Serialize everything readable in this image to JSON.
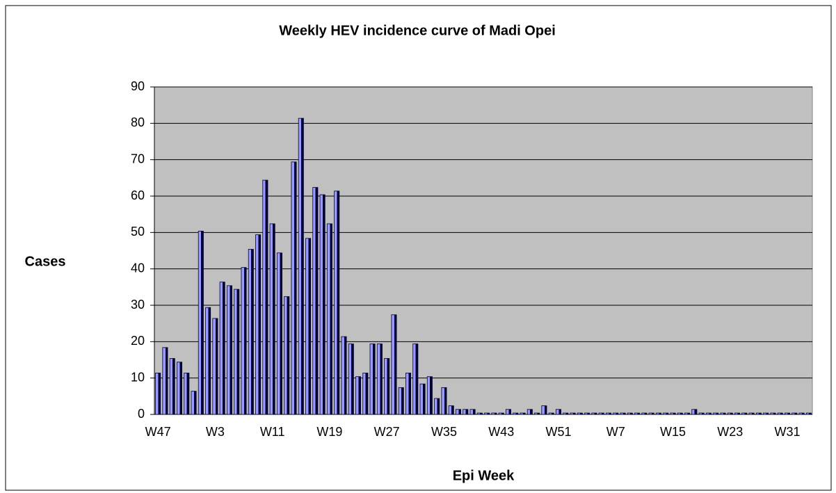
{
  "chart_data": {
    "type": "bar",
    "title": "Weekly HEV incidence curve of Madi Opei",
    "y_label": "Cases",
    "x_label": "Epi Week",
    "categories": [
      "W47",
      null,
      null,
      null,
      null,
      null,
      null,
      null,
      "W3",
      null,
      null,
      null,
      null,
      null,
      null,
      null,
      "W11",
      null,
      null,
      null,
      null,
      null,
      null,
      null,
      "W19",
      null,
      null,
      null,
      null,
      null,
      null,
      null,
      "W27",
      null,
      null,
      null,
      null,
      null,
      null,
      null,
      "W35",
      null,
      null,
      null,
      null,
      null,
      null,
      null,
      "W43",
      null,
      null,
      null,
      null,
      null,
      null,
      null,
      "W51",
      null,
      null,
      null,
      null,
      null,
      null,
      null,
      "W7",
      null,
      null,
      null,
      null,
      null,
      null,
      null,
      "W15",
      null,
      null,
      null,
      null,
      null,
      null,
      null,
      "W23",
      null,
      null,
      null,
      null,
      null,
      null,
      null,
      "W31",
      null,
      null,
      null
    ],
    "values": [
      11,
      18,
      15,
      14,
      11,
      6,
      50,
      29,
      26,
      36,
      35,
      34,
      40,
      45,
      49,
      64,
      52,
      44,
      32,
      69,
      81,
      48,
      62,
      60,
      52,
      61,
      21,
      19,
      10,
      11,
      19,
      19,
      15,
      27,
      7,
      11,
      19,
      8,
      10,
      4,
      7,
      2,
      1,
      1,
      1,
      0,
      0,
      0,
      0,
      1,
      0,
      0,
      1,
      0,
      2,
      0,
      1,
      0,
      0,
      0,
      0,
      0,
      0,
      0,
      0,
      0,
      0,
      0,
      0,
      0,
      0,
      0,
      0,
      0,
      0,
      1,
      0,
      0,
      0,
      0,
      0,
      0,
      0,
      0,
      0,
      0,
      0,
      0,
      0,
      0,
      0,
      0
    ],
    "color": "#9999ff",
    "ylim": [
      0,
      90
    ],
    "yticks": [
      0,
      10,
      20,
      30,
      40,
      50,
      60,
      70,
      80,
      90
    ],
    "grid": true
  }
}
